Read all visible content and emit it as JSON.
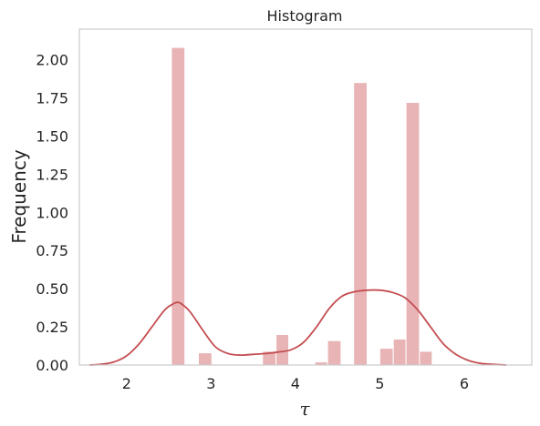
{
  "chart_data": {
    "type": "bar",
    "title": "Histogram",
    "xlabel": "τ",
    "ylabel": "Frequency",
    "xlim": [
      1.44,
      6.8
    ],
    "ylim": [
      0,
      2.2
    ],
    "xticks": [
      2,
      3,
      4,
      5,
      6
    ],
    "xtick_labels": [
      "2",
      "3",
      "4",
      "5",
      "6"
    ],
    "yticks": [
      0,
      0.25,
      0.5,
      0.75,
      1.0,
      1.25,
      1.5,
      1.75,
      2.0
    ],
    "ytick_labels": [
      "0.00",
      "0.25",
      "0.50",
      "0.75",
      "1.00",
      "1.25",
      "1.50",
      "1.75",
      "2.00"
    ],
    "grid": false,
    "colors": {
      "bar": "#e8b4b6",
      "kde": "#c44e52"
    },
    "bars": [
      {
        "x0": 2.53,
        "x1": 2.69,
        "value": 2.08
      },
      {
        "x0": 2.85,
        "x1": 3.01,
        "value": 0.08
      },
      {
        "x0": 3.61,
        "x1": 3.77,
        "value": 0.09
      },
      {
        "x0": 3.77,
        "x1": 3.92,
        "value": 0.2
      },
      {
        "x0": 4.23,
        "x1": 4.38,
        "value": 0.02
      },
      {
        "x0": 4.38,
        "x1": 4.54,
        "value": 0.16
      },
      {
        "x0": 4.69,
        "x1": 4.85,
        "value": 1.85
      },
      {
        "x0": 5.0,
        "x1": 5.16,
        "value": 0.11
      },
      {
        "x0": 5.16,
        "x1": 5.31,
        "value": 0.17
      },
      {
        "x0": 5.31,
        "x1": 5.47,
        "value": 1.72
      },
      {
        "x0": 5.47,
        "x1": 5.62,
        "value": 0.09
      }
    ],
    "kde": {
      "x": [
        1.56,
        1.7,
        1.85,
        2.0,
        2.15,
        2.3,
        2.45,
        2.55,
        2.6,
        2.65,
        2.75,
        2.9,
        3.05,
        3.2,
        3.35,
        3.5,
        3.65,
        3.8,
        3.95,
        4.1,
        4.25,
        4.4,
        4.55,
        4.7,
        4.85,
        5.0,
        5.15,
        5.3,
        5.45,
        5.6,
        5.75,
        5.9,
        6.05,
        6.2,
        6.35,
        6.5
      ],
      "y": [
        0.0,
        0.005,
        0.02,
        0.06,
        0.14,
        0.25,
        0.36,
        0.4,
        0.41,
        0.4,
        0.35,
        0.23,
        0.12,
        0.075,
        0.065,
        0.07,
        0.075,
        0.085,
        0.1,
        0.15,
        0.25,
        0.37,
        0.45,
        0.48,
        0.49,
        0.49,
        0.475,
        0.44,
        0.36,
        0.25,
        0.14,
        0.07,
        0.03,
        0.01,
        0.004,
        0.0
      ]
    }
  }
}
